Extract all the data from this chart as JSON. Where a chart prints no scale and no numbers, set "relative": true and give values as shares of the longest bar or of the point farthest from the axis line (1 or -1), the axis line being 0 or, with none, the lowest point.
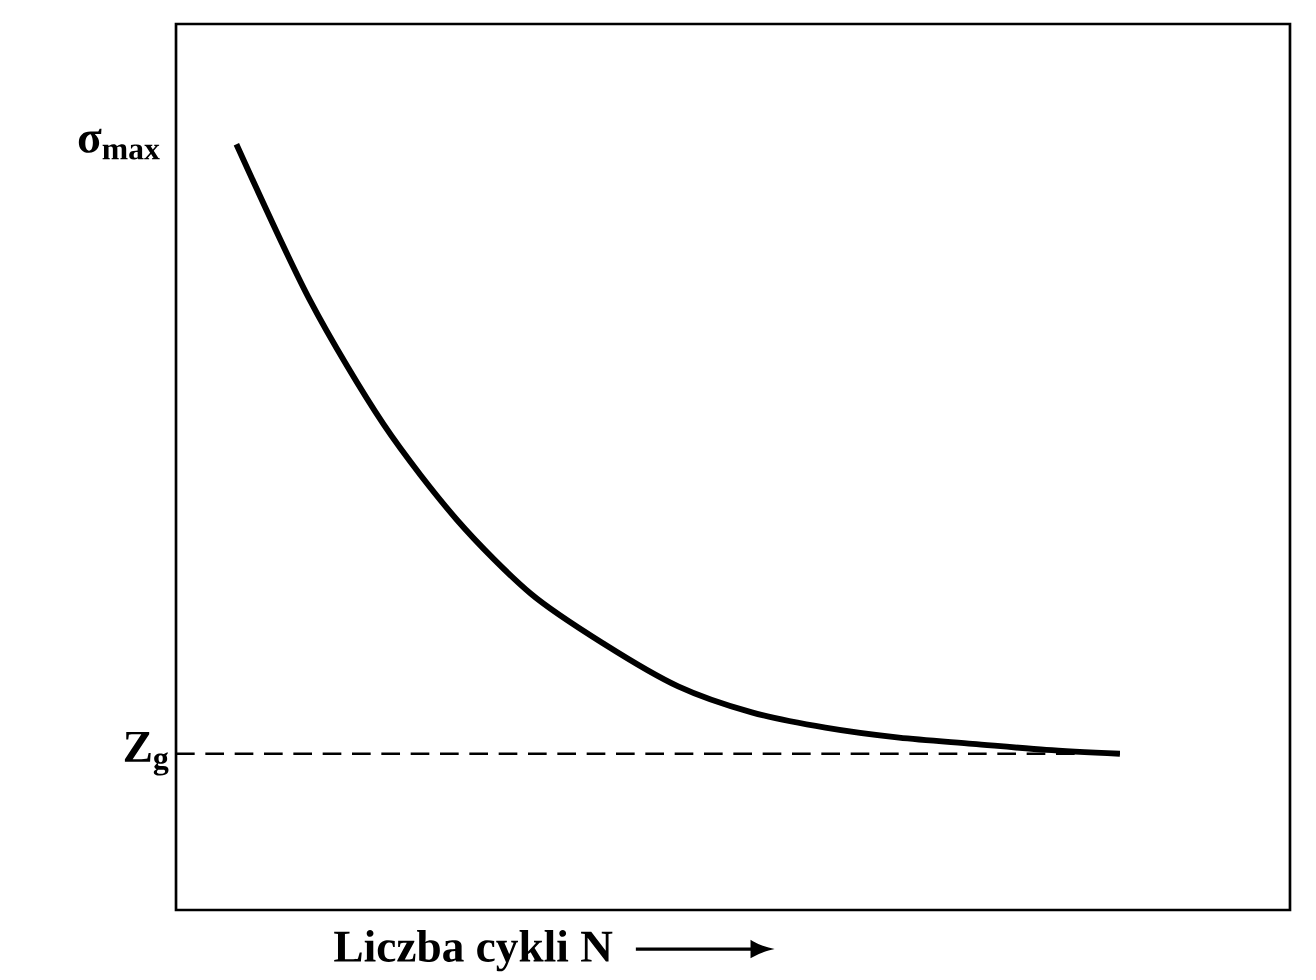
{
  "chart_data": {
    "type": "line",
    "relative": true,
    "xlabel": "Liczba cykli N",
    "ylabel": "σ$_{max}$",
    "categories": [
      null,
      null,
      null,
      null,
      null,
      null,
      null,
      null,
      null,
      null,
      null,
      null,
      null
    ],
    "series": [
      {
        "color": "#000000",
        "values": [
          1.0,
          0.796,
          0.634,
          0.509,
          0.413,
          0.347,
          0.292,
          0.258,
          0.238,
          0.225,
          0.217,
          0.209,
          0.204
        ]
      }
    ],
    "ref_lines": [
      {
        "axis": "y",
        "value": 0.204,
        "label": "Z$_{g}$",
        "line_style": "dashed"
      }
    ]
  }
}
